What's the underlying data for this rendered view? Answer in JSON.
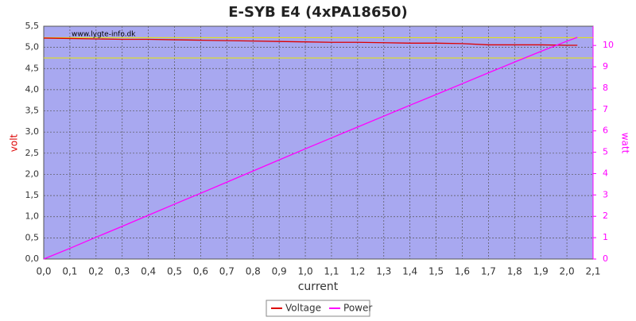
{
  "chart_data": {
    "type": "line",
    "title": "E-SYB E4 (4xPA18650)",
    "xlabel": "current",
    "ylabel": "volt",
    "y2label": "watt",
    "annotation": "www.lygte-info.dk",
    "x": [
      0,
      0.1,
      0.2,
      0.3,
      0.4,
      0.5,
      0.6,
      0.7,
      0.8,
      0.9,
      1.0,
      1.1,
      1.2,
      1.3,
      1.4,
      1.5,
      1.6,
      1.7,
      1.8,
      1.9,
      2.0,
      2.04
    ],
    "series": [
      {
        "name": "Voltage",
        "color": "#dd0000",
        "values": [
          5.22,
          5.21,
          5.2,
          5.19,
          5.19,
          5.18,
          5.17,
          5.16,
          5.15,
          5.14,
          5.13,
          5.12,
          5.12,
          5.11,
          5.1,
          5.1,
          5.09,
          5.06,
          5.06,
          5.06,
          5.05,
          5.05
        ]
      },
      {
        "name": "Power",
        "color": "#ff00ff",
        "axis": "y2",
        "values": [
          0,
          0.5,
          1.02,
          1.53,
          2.05,
          2.57,
          3.08,
          3.6,
          4.12,
          4.64,
          5.16,
          5.67,
          6.18,
          6.69,
          7.2,
          7.7,
          8.21,
          8.72,
          9.22,
          9.72,
          10.2,
          10.38
        ]
      }
    ],
    "hlines": [
      5.23,
      4.75
    ],
    "hline_color": "#e8e800",
    "xlim": [
      0,
      2.1
    ],
    "ylim": [
      0,
      5.5
    ],
    "y2lim": [
      0,
      10.9
    ],
    "xticks": [
      {
        "value": 0,
        "label": "0,0"
      },
      {
        "value": 0.1,
        "label": "0,1"
      },
      {
        "value": 0.2,
        "label": "0,2"
      },
      {
        "value": 0.3,
        "label": "0,3"
      },
      {
        "value": 0.4,
        "label": "0,4"
      },
      {
        "value": 0.5,
        "label": "0,5"
      },
      {
        "value": 0.6,
        "label": "0,6"
      },
      {
        "value": 0.7,
        "label": "0,7"
      },
      {
        "value": 0.8,
        "label": "0,8"
      },
      {
        "value": 0.9,
        "label": "0,9"
      },
      {
        "value": 1.0,
        "label": "1,0"
      },
      {
        "value": 1.1,
        "label": "1,1"
      },
      {
        "value": 1.2,
        "label": "1,2"
      },
      {
        "value": 1.3,
        "label": "1,3"
      },
      {
        "value": 1.4,
        "label": "1,4"
      },
      {
        "value": 1.5,
        "label": "1,5"
      },
      {
        "value": 1.6,
        "label": "1,6"
      },
      {
        "value": 1.7,
        "label": "1,7"
      },
      {
        "value": 1.8,
        "label": "1,8"
      },
      {
        "value": 1.9,
        "label": "1,9"
      },
      {
        "value": 2.0,
        "label": "2,0"
      },
      {
        "value": 2.1,
        "label": "2,1"
      }
    ],
    "yticks": [
      {
        "value": 0,
        "label": "0,0"
      },
      {
        "value": 0.5,
        "label": "0,5"
      },
      {
        "value": 1.0,
        "label": "1,0"
      },
      {
        "value": 1.5,
        "label": "1,5"
      },
      {
        "value": 2.0,
        "label": "2,0"
      },
      {
        "value": 2.5,
        "label": "2,5"
      },
      {
        "value": 3.0,
        "label": "3,0"
      },
      {
        "value": 3.5,
        "label": "3,5"
      },
      {
        "value": 4.0,
        "label": "4,0"
      },
      {
        "value": 4.5,
        "label": "4,5"
      },
      {
        "value": 5.0,
        "label": "5,0"
      },
      {
        "value": 5.5,
        "label": "5,5"
      }
    ],
    "y2ticks": [
      0,
      1,
      2,
      3,
      4,
      5,
      6,
      7,
      8,
      9,
      10
    ],
    "grid": true,
    "plot_background": "#a8a8f0",
    "legend": "bottom"
  }
}
